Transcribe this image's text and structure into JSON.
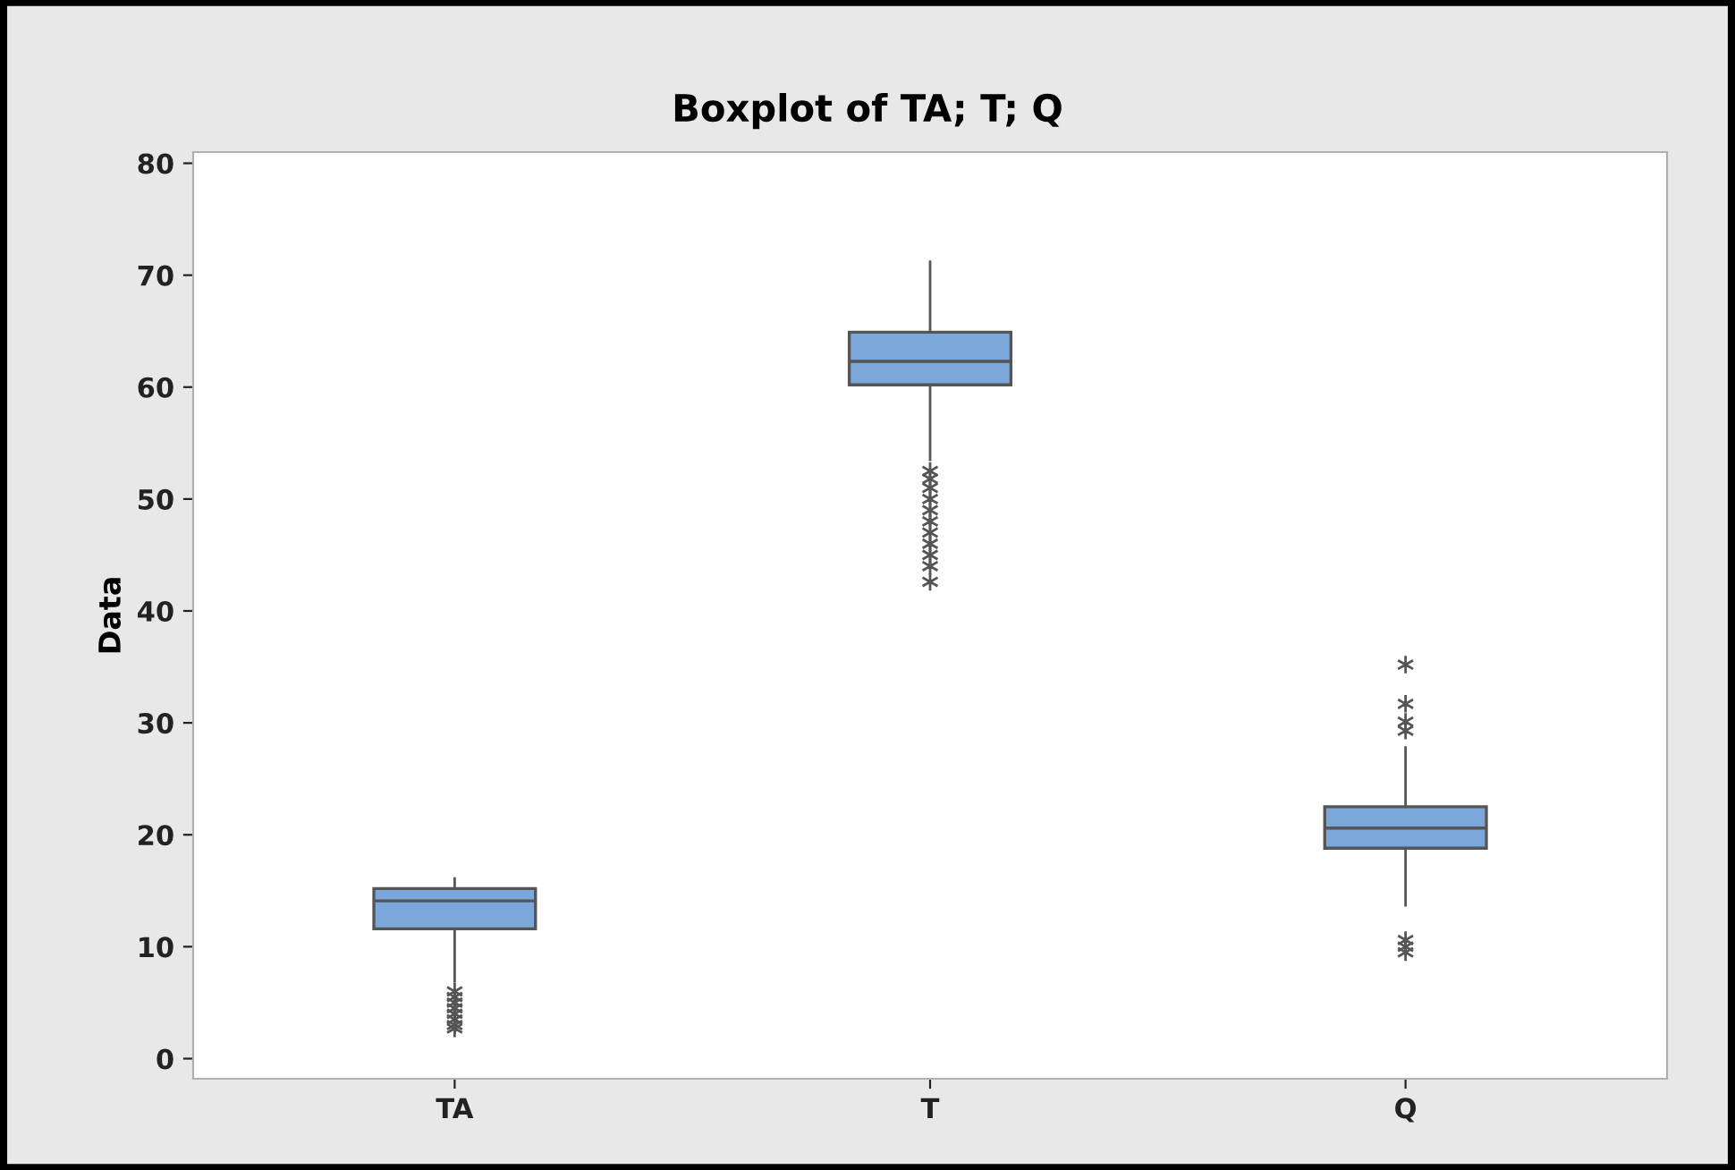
{
  "chart_data": {
    "type": "box",
    "title": "Boxplot of TA; T; Q",
    "ylabel": "Data",
    "categories": [
      "TA",
      "T",
      "Q"
    ],
    "boxes": [
      {
        "low": 6.9,
        "q1": 11.6,
        "median": 14.1,
        "q3": 15.2,
        "high": 16.1,
        "outliers": [
          6.0,
          5.5,
          5.0,
          4.5,
          4.0,
          3.5,
          3.0,
          2.7
        ]
      },
      {
        "low": 53.5,
        "q1": 60.2,
        "median": 62.3,
        "q3": 64.9,
        "high": 71.2,
        "outliers": [
          52.5,
          51.8,
          51.0,
          50.0,
          49.0,
          48.0,
          47.0,
          46.0,
          45.0,
          44.0,
          42.6
        ]
      },
      {
        "low": 13.7,
        "q1": 18.8,
        "median": 20.6,
        "q3": 22.5,
        "high": 27.8,
        "outliers": [
          35.2,
          31.7,
          30.1,
          29.3,
          10.6,
          10.0,
          9.5
        ]
      }
    ],
    "color": "#7ba7da",
    "marker": "star",
    "grid": false,
    "ylim": [
      -1.8,
      81
    ],
    "yticks": [
      0,
      10,
      20,
      30,
      40,
      50,
      60,
      70,
      80
    ]
  }
}
